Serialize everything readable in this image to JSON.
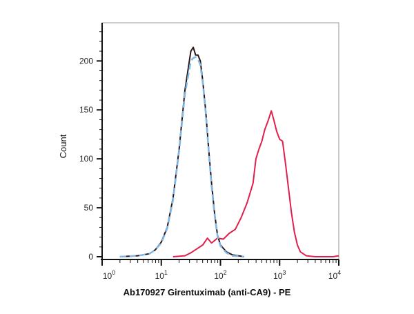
{
  "chart_data": {
    "type": "line",
    "title": "",
    "xlabel": "Ab170927 Girentuximab (anti-CA9) - PE",
    "ylabel": "Count",
    "xscale": "log",
    "xlim": [
      1,
      10000
    ],
    "ylim": [
      0,
      239
    ],
    "xticks": [
      {
        "base": "10",
        "exp": "0",
        "value": 1
      },
      {
        "base": "10",
        "exp": "1",
        "value": 10
      },
      {
        "base": "10",
        "exp": "2",
        "value": 100
      },
      {
        "base": "10",
        "exp": "3",
        "value": 1000
      },
      {
        "base": "10",
        "exp": "4",
        "value": 10000
      }
    ],
    "yticks": [
      0,
      50,
      100,
      150,
      200
    ],
    "grid": false,
    "legend": "none",
    "series": [
      {
        "color": "#e0204a",
        "style": "solid",
        "x": [
          15.8,
          25.1,
          31.6,
          39.8,
          50.1,
          60.3,
          70.8,
          89.1,
          112,
          141,
          178,
          224,
          282,
          355,
          398,
          447,
          501,
          562,
          631,
          724,
          794,
          891,
          1000,
          1122,
          1259,
          1413,
          1585,
          1778,
          1995,
          2239,
          2818,
          3981,
          8000,
          10000
        ],
        "y": [
          0,
          1,
          4,
          8,
          12,
          19,
          14,
          19,
          18,
          24,
          28,
          40,
          55,
          75,
          100,
          110,
          118,
          130,
          138,
          149,
          140,
          128,
          120,
          118,
          95,
          70,
          45,
          25,
          12,
          5,
          1,
          0,
          0,
          1
        ]
      },
      {
        "color": "#2a1414",
        "style": "solid",
        "x": [
          2,
          4,
          6.3,
          7.9,
          10,
          12.6,
          15.8,
          20,
          25.1,
          31.6,
          34.7,
          38,
          41.7,
          45.7,
          50.1,
          56.2,
          63.1,
          70.8,
          79.4,
          89.1,
          100,
          126,
          158,
          251
        ],
        "y": [
          0,
          1,
          3,
          7,
          15,
          30,
          60,
          110,
          170,
          210,
          214,
          206,
          206,
          200,
          180,
          150,
          110,
          75,
          45,
          22,
          12,
          5,
          2,
          0
        ]
      },
      {
        "color": "#80b8e8",
        "style": "dashed",
        "x": [
          2,
          4,
          6.3,
          7.9,
          10,
          12.6,
          15.8,
          20,
          25.1,
          31.6,
          34.7,
          38,
          41.7,
          45.7,
          50.1,
          56.2,
          63.1,
          70.8,
          79.4,
          89.1,
          100,
          126,
          158,
          251
        ],
        "y": [
          0,
          1,
          3,
          7,
          14,
          29,
          58,
          108,
          166,
          200,
          203,
          204,
          202,
          196,
          178,
          148,
          108,
          72,
          43,
          21,
          11,
          4,
          1,
          0
        ]
      }
    ]
  }
}
